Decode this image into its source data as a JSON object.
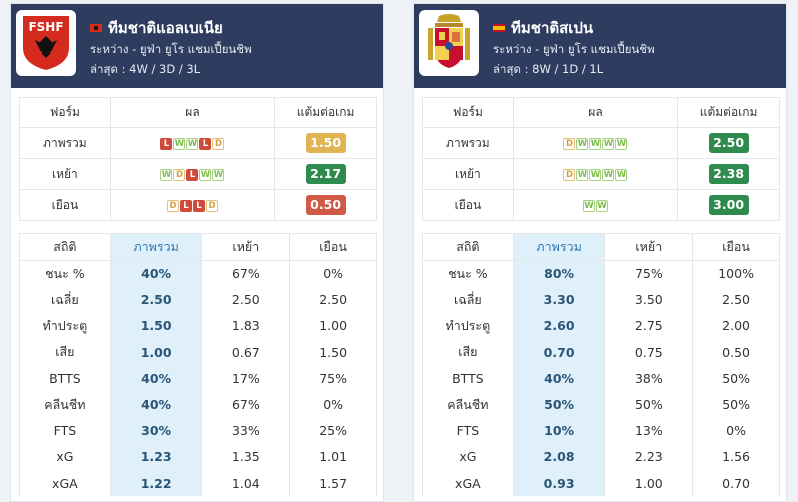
{
  "colors": {
    "header_bg": "#2d3c5f",
    "win": "#7dbb4d",
    "draw": "#d4a042",
    "loss": "#d04a3a",
    "ppg_high": "#2e8a4d",
    "ppg_mid": "#e1b453",
    "ppg_low": "#d05a45",
    "highlight": "#dff0fb"
  },
  "teams": [
    {
      "logo_text": "FSHF",
      "name": "ทีมชาติแอลเบเนีย",
      "competition": "ระหว่าง - ยูฟ่า ยูโร แชมเปี้ยนชิพ",
      "record": "ล่าสุด : 4W / 3D / 3L",
      "form_headers": [
        "ฟอร์ม",
        "ผล",
        "แต้มต่อเกม"
      ],
      "form_rows": [
        {
          "label": "ภาพรวม",
          "results": [
            "L",
            "W",
            "W",
            "L",
            "D"
          ],
          "ppg": "1.50",
          "ppg_color": "#e1b453"
        },
        {
          "label": "เหย้า",
          "results": [
            "W",
            "D",
            "L",
            "W",
            "W"
          ],
          "ppg": "2.17",
          "ppg_color": "#2e8a4d"
        },
        {
          "label": "เยือน",
          "results": [
            "D",
            "L",
            "L",
            "D"
          ],
          "ppg": "0.50",
          "ppg_color": "#d05a45"
        }
      ],
      "stat_headers": [
        "สถิติ",
        "ภาพรวม",
        "เหย้า",
        "เยือน"
      ],
      "stat_rows": [
        [
          "ชนะ %",
          "40%",
          "67%",
          "0%"
        ],
        [
          "เฉลี่ย",
          "2.50",
          "2.50",
          "2.50"
        ],
        [
          "ทำประตู",
          "1.50",
          "1.83",
          "1.00"
        ],
        [
          "เสีย",
          "1.00",
          "0.67",
          "1.50"
        ],
        [
          "BTTS",
          "40%",
          "17%",
          "75%"
        ],
        [
          "คลีนชีท",
          "40%",
          "67%",
          "0%"
        ],
        [
          "FTS",
          "30%",
          "33%",
          "25%"
        ],
        [
          "xG",
          "1.23",
          "1.35",
          "1.01"
        ],
        [
          "xGA",
          "1.22",
          "1.04",
          "1.57"
        ]
      ]
    },
    {
      "logo_text": "",
      "name": "ทีมชาติสเปน",
      "competition": "ระหว่าง - ยูฟ่า ยูโร แชมเปี้ยนชิพ",
      "record": "ล่าสุด : 8W / 1D / 1L",
      "form_headers": [
        "ฟอร์ม",
        "ผล",
        "แต้มต่อเกม"
      ],
      "form_rows": [
        {
          "label": "ภาพรวม",
          "results": [
            "D",
            "W",
            "W",
            "W",
            "W"
          ],
          "ppg": "2.50",
          "ppg_color": "#2e8a4d"
        },
        {
          "label": "เหย้า",
          "results": [
            "D",
            "W",
            "W",
            "W",
            "W"
          ],
          "ppg": "2.38",
          "ppg_color": "#2e8a4d"
        },
        {
          "label": "เยือน",
          "results": [
            "W",
            "W"
          ],
          "ppg": "3.00",
          "ppg_color": "#2e8a4d"
        }
      ],
      "stat_headers": [
        "สถิติ",
        "ภาพรวม",
        "เหย้า",
        "เยือน"
      ],
      "stat_rows": [
        [
          "ชนะ %",
          "80%",
          "75%",
          "100%"
        ],
        [
          "เฉลี่ย",
          "3.30",
          "3.50",
          "2.50"
        ],
        [
          "ทำประตู",
          "2.60",
          "2.75",
          "2.00"
        ],
        [
          "เสีย",
          "0.70",
          "0.75",
          "0.50"
        ],
        [
          "BTTS",
          "40%",
          "38%",
          "50%"
        ],
        [
          "คลีนชีท",
          "50%",
          "50%",
          "50%"
        ],
        [
          "FTS",
          "10%",
          "13%",
          "0%"
        ],
        [
          "xG",
          "2.08",
          "2.23",
          "1.56"
        ],
        [
          "xGA",
          "0.93",
          "1.00",
          "0.70"
        ]
      ]
    }
  ]
}
